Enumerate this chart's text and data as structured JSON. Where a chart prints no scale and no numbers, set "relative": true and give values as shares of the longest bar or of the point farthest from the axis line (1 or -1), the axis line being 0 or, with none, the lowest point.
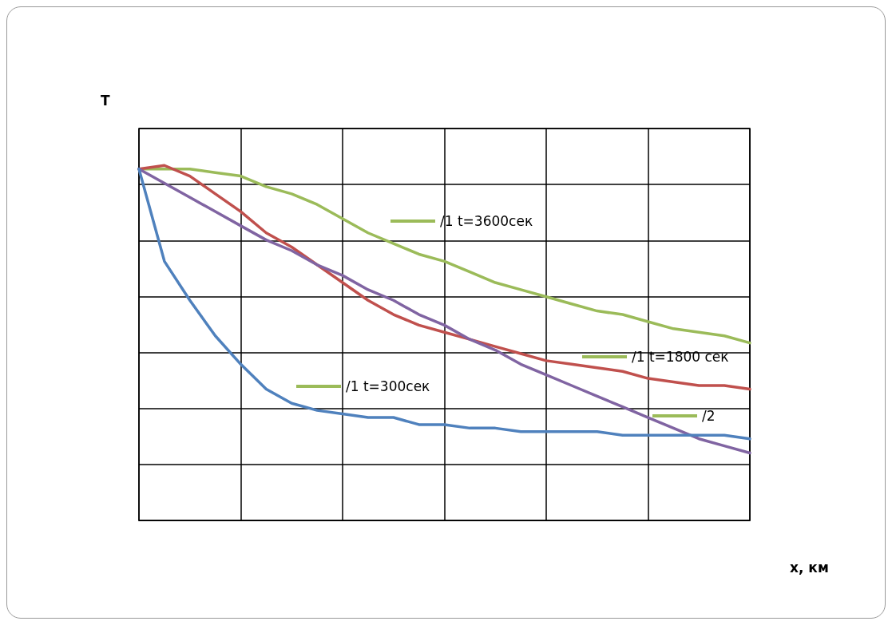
{
  "chart_data": {
    "type": "line",
    "relative": true,
    "xlabel": "x, км",
    "ylabel": "T",
    "categories": [
      null,
      null,
      null,
      null,
      null,
      null,
      null,
      null,
      null,
      null,
      null,
      null,
      null,
      null,
      null,
      null,
      null,
      null,
      null,
      null,
      null,
      null,
      null,
      null,
      null
    ],
    "series": [
      {
        "color": "#9bbb59",
        "values": [
          0.99,
          0.99,
          0.99,
          0.98,
          0.97,
          0.94,
          0.92,
          0.89,
          0.85,
          0.81,
          0.78,
          0.75,
          0.73,
          0.7,
          0.67,
          0.65,
          0.63,
          0.61,
          0.59,
          0.58,
          0.56,
          0.54,
          0.53,
          0.52,
          0.5
        ]
      },
      {
        "color": "#c0504d",
        "values": [
          0.99,
          1.0,
          0.97,
          0.92,
          0.87,
          0.81,
          0.77,
          0.72,
          0.67,
          0.62,
          0.58,
          0.55,
          0.53,
          0.51,
          0.49,
          0.47,
          0.45,
          0.44,
          0.43,
          0.42,
          0.4,
          0.39,
          0.38,
          0.38,
          0.37
        ]
      },
      {
        "color": "#8064a2",
        "values": [
          0.99,
          0.95,
          0.91,
          0.87,
          0.83,
          0.79,
          0.76,
          0.72,
          0.69,
          0.65,
          0.62,
          0.58,
          0.55,
          0.51,
          0.48,
          0.44,
          0.41,
          0.38,
          0.35,
          0.32,
          0.29,
          0.26,
          0.23,
          0.21,
          0.19
        ]
      },
      {
        "color": "#4f81bd",
        "values": [
          0.99,
          0.73,
          0.62,
          0.52,
          0.44,
          0.37,
          0.33,
          0.31,
          0.3,
          0.29,
          0.29,
          0.27,
          0.27,
          0.26,
          0.26,
          0.25,
          0.25,
          0.25,
          0.25,
          0.24,
          0.24,
          0.24,
          0.24,
          0.24,
          0.23
        ]
      }
    ],
    "annotations": [
      "/1 t=3600сек",
      "/1 t=1800 сек",
      "/1 t=300сек",
      "/2"
    ],
    "grid": true,
    "marker": "none",
    "line_style": "solid"
  }
}
